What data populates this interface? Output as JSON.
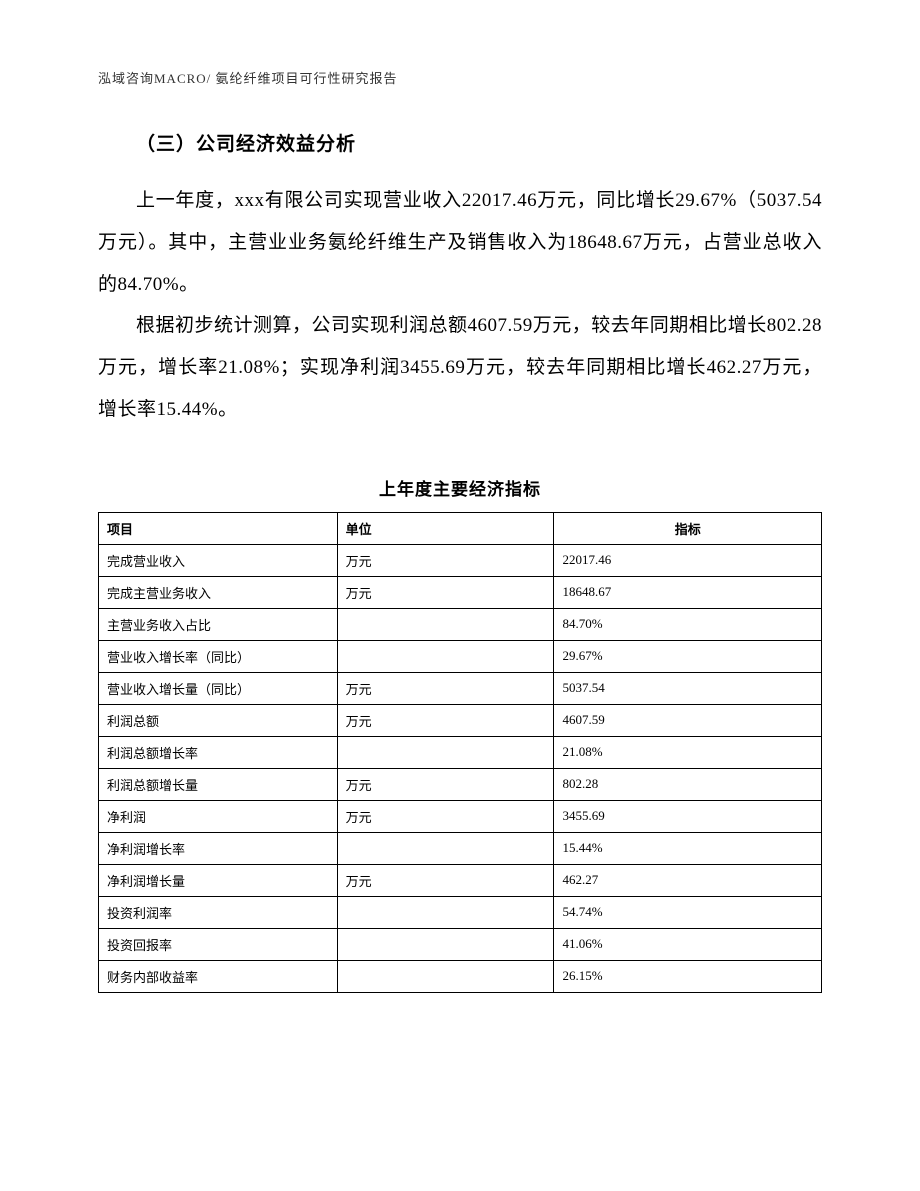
{
  "header": "泓域咨询MACRO/     氨纶纤维项目可行性研究报告",
  "section_title": "（三）公司经济效益分析",
  "paragraph1": "上一年度，xxx有限公司实现营业收入22017.46万元，同比增长29.67%（5037.54万元）。其中，主营业业务氨纶纤维生产及销售收入为18648.67万元，占营业总收入的84.70%。",
  "paragraph2": "根据初步统计测算，公司实现利润总额4607.59万元，较去年同期相比增长802.28万元，增长率21.08%；实现净利润3455.69万元，较去年同期相比增长462.27万元，增长率15.44%。",
  "table": {
    "title": "上年度主要经济指标",
    "columns": [
      "项目",
      "单位",
      "指标"
    ],
    "col_widths": [
      "33%",
      "30%",
      "37%"
    ],
    "header_font_weight": "bold",
    "border_color": "#000000",
    "font_size": 13,
    "rows": [
      [
        "完成营业收入",
        "万元",
        "22017.46"
      ],
      [
        "完成主营业务收入",
        "万元",
        "18648.67"
      ],
      [
        "主营业务收入占比",
        "",
        "84.70%"
      ],
      [
        "营业收入增长率（同比）",
        "",
        "29.67%"
      ],
      [
        "营业收入增长量（同比）",
        "万元",
        "5037.54"
      ],
      [
        "利润总额",
        "万元",
        "4607.59"
      ],
      [
        "利润总额增长率",
        "",
        "21.08%"
      ],
      [
        "利润总额增长量",
        "万元",
        "802.28"
      ],
      [
        "净利润",
        "万元",
        "3455.69"
      ],
      [
        "净利润增长率",
        "",
        "15.44%"
      ],
      [
        "净利润增长量",
        "万元",
        "462.27"
      ],
      [
        "投资利润率",
        "",
        "54.74%"
      ],
      [
        "投资回报率",
        "",
        "41.06%"
      ],
      [
        "财务内部收益率",
        "",
        "26.15%"
      ]
    ]
  }
}
